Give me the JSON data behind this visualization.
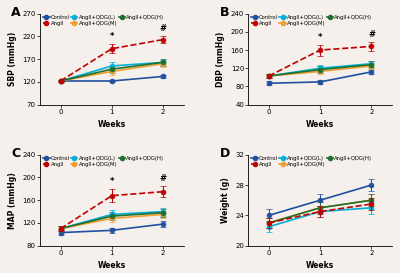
{
  "weeks": [
    0,
    1,
    2
  ],
  "panel_A": {
    "title": "A",
    "ylabel": "SBP (mmHg)",
    "ylim": [
      70,
      270
    ],
    "yticks": [
      70,
      120,
      170,
      220,
      270
    ],
    "control": {
      "mean": [
        122,
        122,
        132
      ],
      "err": [
        3,
        3,
        4
      ]
    },
    "angII": {
      "mean": [
        122,
        193,
        213
      ],
      "err": [
        3,
        10,
        8
      ]
    },
    "angII_L": {
      "mean": [
        122,
        155,
        163
      ],
      "err": [
        3,
        8,
        6
      ]
    },
    "angII_M": {
      "mean": [
        122,
        143,
        160
      ],
      "err": [
        3,
        7,
        7
      ]
    },
    "angII_H": {
      "mean": [
        122,
        148,
        163
      ],
      "err": [
        3,
        8,
        7
      ]
    }
  },
  "panel_B": {
    "title": "B",
    "ylabel": "DBP (mmHg)",
    "ylim": [
      40,
      240
    ],
    "yticks": [
      40,
      80,
      120,
      160,
      200,
      240
    ],
    "control": {
      "mean": [
        87,
        90,
        112
      ],
      "err": [
        4,
        4,
        5
      ]
    },
    "angII": {
      "mean": [
        103,
        160,
        168
      ],
      "err": [
        4,
        12,
        10
      ]
    },
    "angII_L": {
      "mean": [
        103,
        120,
        130
      ],
      "err": [
        4,
        8,
        7
      ]
    },
    "angII_M": {
      "mean": [
        103,
        113,
        125
      ],
      "err": [
        4,
        6,
        6
      ]
    },
    "angII_H": {
      "mean": [
        103,
        117,
        128
      ],
      "err": [
        4,
        7,
        7
      ]
    }
  },
  "panel_C": {
    "title": "C",
    "ylabel": "MAP (mmHg)",
    "ylim": [
      80,
      240
    ],
    "yticks": [
      80,
      120,
      160,
      200,
      240
    ],
    "control": {
      "mean": [
        103,
        107,
        118
      ],
      "err": [
        4,
        4,
        5
      ]
    },
    "angII": {
      "mean": [
        110,
        168,
        175
      ],
      "err": [
        4,
        12,
        10
      ]
    },
    "angII_L": {
      "mean": [
        110,
        135,
        140
      ],
      "err": [
        4,
        8,
        7
      ]
    },
    "angII_M": {
      "mean": [
        110,
        128,
        135
      ],
      "err": [
        4,
        7,
        6
      ]
    },
    "angII_H": {
      "mean": [
        110,
        132,
        138
      ],
      "err": [
        4,
        7,
        7
      ]
    }
  },
  "panel_D": {
    "title": "D",
    "ylabel": "Weight (g)",
    "ylim": [
      20,
      32
    ],
    "yticks": [
      20,
      24,
      28,
      32
    ],
    "control": {
      "mean": [
        24.0,
        26.0,
        28.0
      ],
      "err": [
        0.8,
        0.8,
        0.8
      ]
    },
    "angII": {
      "mean": [
        23.0,
        24.5,
        25.5
      ],
      "err": [
        0.7,
        0.7,
        0.8
      ]
    },
    "angII_L": {
      "mean": [
        22.5,
        24.5,
        25.0
      ],
      "err": [
        0.7,
        0.7,
        0.8
      ]
    },
    "angII_M": {
      "mean": [
        23.0,
        25.0,
        26.0
      ],
      "err": [
        0.7,
        0.8,
        0.8
      ]
    },
    "angII_H": {
      "mean": [
        23.0,
        25.0,
        26.0
      ],
      "err": [
        0.7,
        0.8,
        0.8
      ]
    }
  },
  "colors": {
    "control": "#2050a0",
    "angII": "#c00000",
    "angII_L": "#00b0d8",
    "angII_M": "#f0a030",
    "angII_H": "#207030"
  },
  "legend_labels": [
    "Control",
    "AngII",
    "AngII+QDG(L)",
    "AngII+QDG(M)",
    "AngII+QDG(H)"
  ],
  "series_keys": [
    "control",
    "angII",
    "angII_L",
    "angII_M",
    "angII_H"
  ],
  "bg_color": "#f5f0ec"
}
